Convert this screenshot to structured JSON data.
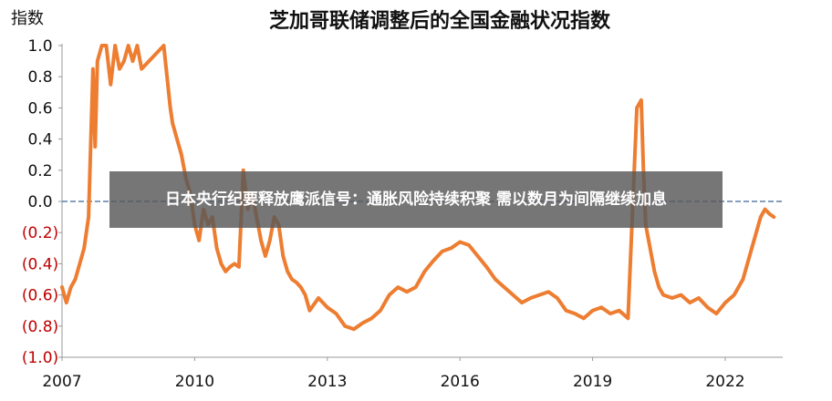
{
  "chart_data": {
    "type": "line",
    "title": "芝加哥联储调整后的全国金融状况指数",
    "ylabel": "指数",
    "xlabel": "",
    "ylim": [
      -1.0,
      1.0
    ],
    "y_ticks": [
      "1.0",
      "0.8",
      "0.6",
      "0.4",
      "0.2",
      "0.0",
      "(0.2)",
      "(0.4)",
      "(0.6)",
      "(0.8)",
      "(1.0)"
    ],
    "y_tick_values": [
      1.0,
      0.8,
      0.6,
      0.4,
      0.2,
      0.0,
      -0.2,
      -0.4,
      -0.6,
      -0.8,
      -1.0
    ],
    "x_ticks": [
      "2007",
      "2010",
      "2013",
      "2016",
      "2019",
      "2022"
    ],
    "x_tick_values": [
      2007,
      2010,
      2013,
      2016,
      2019,
      2022
    ],
    "xlim": [
      2007,
      2023.3
    ],
    "grid": false,
    "colors": {
      "series": "#ED7D31",
      "zero_line": "#5B7FA6",
      "negative_tick": "#C00000",
      "axis": "#999999"
    },
    "series": [
      {
        "x": [
          2007.0,
          2007.1,
          2007.2,
          2007.3,
          2007.4,
          2007.5,
          2007.6,
          2007.7,
          2007.75,
          2007.8,
          2007.9,
          2008.0,
          2008.1,
          2008.2,
          2008.3,
          2008.4,
          2008.5,
          2008.6,
          2008.7,
          2008.8,
          2009.3,
          2009.45,
          2009.5,
          2009.6,
          2009.7,
          2009.8,
          2009.9,
          2010.0,
          2010.1,
          2010.2,
          2010.3,
          2010.4,
          2010.5,
          2010.6,
          2010.7,
          2010.8,
          2010.9,
          2011.0,
          2011.1,
          2011.2,
          2011.3,
          2011.4,
          2011.5,
          2011.6,
          2011.7,
          2011.8,
          2011.9,
          2012.0,
          2012.1,
          2012.2,
          2012.3,
          2012.4,
          2012.5,
          2012.6,
          2012.8,
          2013.0,
          2013.2,
          2013.4,
          2013.6,
          2013.8,
          2014.0,
          2014.2,
          2014.4,
          2014.6,
          2014.8,
          2015.0,
          2015.2,
          2015.4,
          2015.6,
          2015.8,
          2016.0,
          2016.2,
          2016.4,
          2016.6,
          2016.8,
          2017.0,
          2017.2,
          2017.4,
          2017.6,
          2017.8,
          2018.0,
          2018.2,
          2018.4,
          2018.6,
          2018.8,
          2019.0,
          2019.2,
          2019.4,
          2019.6,
          2019.8,
          2020.0,
          2020.1,
          2020.15,
          2020.2,
          2020.3,
          2020.4,
          2020.5,
          2020.6,
          2020.8,
          2021.0,
          2021.2,
          2021.4,
          2021.6,
          2021.8,
          2022.0,
          2022.2,
          2022.4,
          2022.6,
          2022.8,
          2022.9,
          2023.0,
          2023.1
        ],
        "y": [
          -0.55,
          -0.65,
          -0.55,
          -0.5,
          -0.4,
          -0.3,
          -0.1,
          0.85,
          0.35,
          0.9,
          1.0,
          1.0,
          0.75,
          1.0,
          0.85,
          0.9,
          1.0,
          0.9,
          1.0,
          0.85,
          1.0,
          0.6,
          0.5,
          0.4,
          0.3,
          0.15,
          0.05,
          -0.15,
          -0.25,
          -0.05,
          -0.15,
          -0.1,
          -0.3,
          -0.4,
          -0.45,
          -0.42,
          -0.4,
          -0.42,
          0.2,
          -0.05,
          0.05,
          -0.1,
          -0.25,
          -0.35,
          -0.25,
          -0.1,
          -0.15,
          -0.35,
          -0.45,
          -0.5,
          -0.52,
          -0.55,
          -0.6,
          -0.7,
          -0.62,
          -0.68,
          -0.72,
          -0.8,
          -0.82,
          -0.78,
          -0.75,
          -0.7,
          -0.6,
          -0.55,
          -0.58,
          -0.55,
          -0.45,
          -0.38,
          -0.32,
          -0.3,
          -0.26,
          -0.28,
          -0.35,
          -0.42,
          -0.5,
          -0.55,
          -0.6,
          -0.65,
          -0.62,
          -0.6,
          -0.58,
          -0.62,
          -0.7,
          -0.72,
          -0.75,
          -0.7,
          -0.68,
          -0.72,
          -0.7,
          -0.75,
          0.6,
          0.65,
          0.2,
          -0.15,
          -0.3,
          -0.45,
          -0.55,
          -0.6,
          -0.62,
          -0.6,
          -0.65,
          -0.62,
          -0.68,
          -0.72,
          -0.65,
          -0.6,
          -0.5,
          -0.3,
          -0.1,
          -0.05,
          -0.08,
          -0.1
        ]
      }
    ]
  },
  "overlay": {
    "text": "日本央行纪要释放鹰派信号：通胀风险持续积聚 需以数月为间隔继续加息"
  }
}
